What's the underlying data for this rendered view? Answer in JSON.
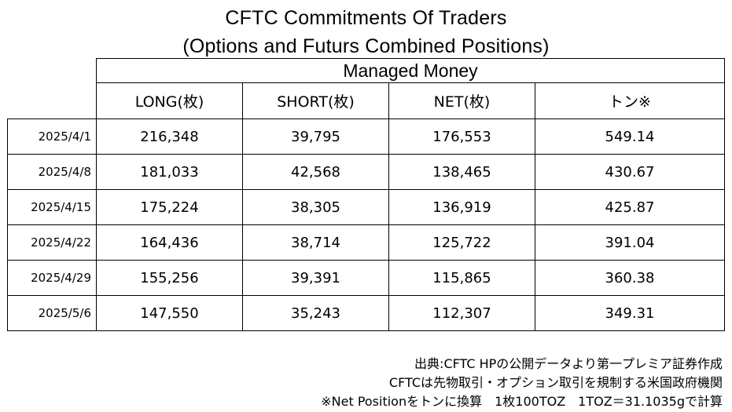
{
  "chart_data": {
    "type": "table",
    "title": "CFTC Commitments Of Traders",
    "subtitle": "(Options and Futurs Combined Positions)",
    "group_header": "Managed Money",
    "columns": [
      "LONG(枚)",
      "SHORT(枚)",
      "NET(枚)",
      "トン※"
    ],
    "rows": [
      {
        "date": "2025/4/1",
        "long": "216,348",
        "short": "39,795",
        "net": "176,553",
        "tons": "549.14"
      },
      {
        "date": "2025/4/8",
        "long": "181,033",
        "short": "42,568",
        "net": "138,465",
        "tons": "430.67"
      },
      {
        "date": "2025/4/15",
        "long": "175,224",
        "short": "38,305",
        "net": "136,919",
        "tons": "425.87"
      },
      {
        "date": "2025/4/22",
        "long": "164,436",
        "short": "38,714",
        "net": "125,722",
        "tons": "391.04"
      },
      {
        "date": "2025/4/29",
        "long": "155,256",
        "short": "39,391",
        "net": "115,865",
        "tons": "360.38"
      },
      {
        "date": "2025/5/6",
        "long": "147,550",
        "short": "35,243",
        "net": "112,307",
        "tons": "349.31"
      }
    ]
  },
  "notes": [
    "出典:CFTC HPの公開データより第一プレミア証券作成",
    "CFTCは先物取引・オプション取引を規制する米国政府機関",
    "※Net Positionをトンに換算　1枚100TOZ　1TOZ＝31.1035gで計算"
  ]
}
